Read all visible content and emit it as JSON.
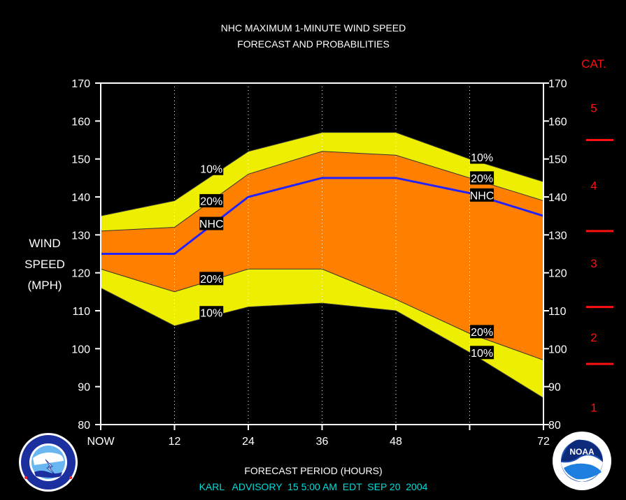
{
  "chart_data": {
    "type": "area",
    "title_line1": "NHC MAXIMUM 1-MINUTE WIND SPEED",
    "title_line2": "FORECAST AND PROBABILITIES",
    "ylabel_lines": [
      "WIND",
      "SPEED",
      "(MPH)"
    ],
    "xlabel": "FORECAST PERIOD (HOURS)",
    "advisory": "KARL   ADVISORY  15 5:00 AM  EDT  SEP 20  2004",
    "cat_header": "CAT.",
    "ylim": [
      80,
      170
    ],
    "xlim": [
      0,
      72
    ],
    "x": [
      0,
      12,
      24,
      36,
      48,
      60,
      72
    ],
    "xtick_labels": [
      "NOW",
      "12",
      "24",
      "36",
      "48",
      "",
      "72"
    ],
    "yticks": [
      80,
      90,
      100,
      110,
      120,
      130,
      140,
      150,
      160,
      170
    ],
    "series": [
      {
        "name": "10%",
        "values": [
          135,
          139,
          152,
          157,
          157,
          150,
          144
        ]
      },
      {
        "name": "20%",
        "values": [
          131,
          132,
          146,
          152,
          151,
          145,
          139
        ]
      },
      {
        "name": "NHC",
        "values": [
          125,
          125,
          140,
          145,
          145,
          141,
          135
        ]
      },
      {
        "name": "20%",
        "values": [
          121,
          115,
          121,
          121,
          113,
          104,
          97
        ]
      },
      {
        "name": "10%",
        "values": [
          116,
          106,
          111,
          112,
          110,
          99,
          87
        ]
      }
    ],
    "series_labels": [
      {
        "text": "10%",
        "x": 18,
        "y": 147.5
      },
      {
        "text": "20%",
        "x": 18,
        "y": 139
      },
      {
        "text": "NHC",
        "x": 18,
        "y": 133
      },
      {
        "text": "20%",
        "x": 18,
        "y": 118.5
      },
      {
        "text": "10%",
        "x": 18,
        "y": 109.5
      },
      {
        "text": "10%",
        "x": 62,
        "y": 150.5
      },
      {
        "text": "20%",
        "x": 62,
        "y": 145
      },
      {
        "text": "NHC",
        "x": 62,
        "y": 140.5
      },
      {
        "text": "20%",
        "x": 62,
        "y": 104.5
      },
      {
        "text": "10%",
        "x": 62,
        "y": 99
      }
    ],
    "categories": [
      {
        "label": "5",
        "y": 163.5
      },
      {
        "label": "4",
        "y": 143
      },
      {
        "label": "3",
        "y": 122.5
      },
      {
        "label": "2",
        "y": 103
      },
      {
        "label": "1",
        "y": 84.5
      }
    ],
    "category_boundaries": [
      155,
      131,
      111,
      96
    ],
    "colors": {
      "band10": "#eeee00",
      "band20": "#ff8000",
      "nhc": "#2222ff",
      "category": "#ff1010",
      "advisory": "#00dddd",
      "text": "#ffffff"
    }
  },
  "logos": {
    "left": "national-weather-service-logo",
    "right": "noaa-logo"
  }
}
